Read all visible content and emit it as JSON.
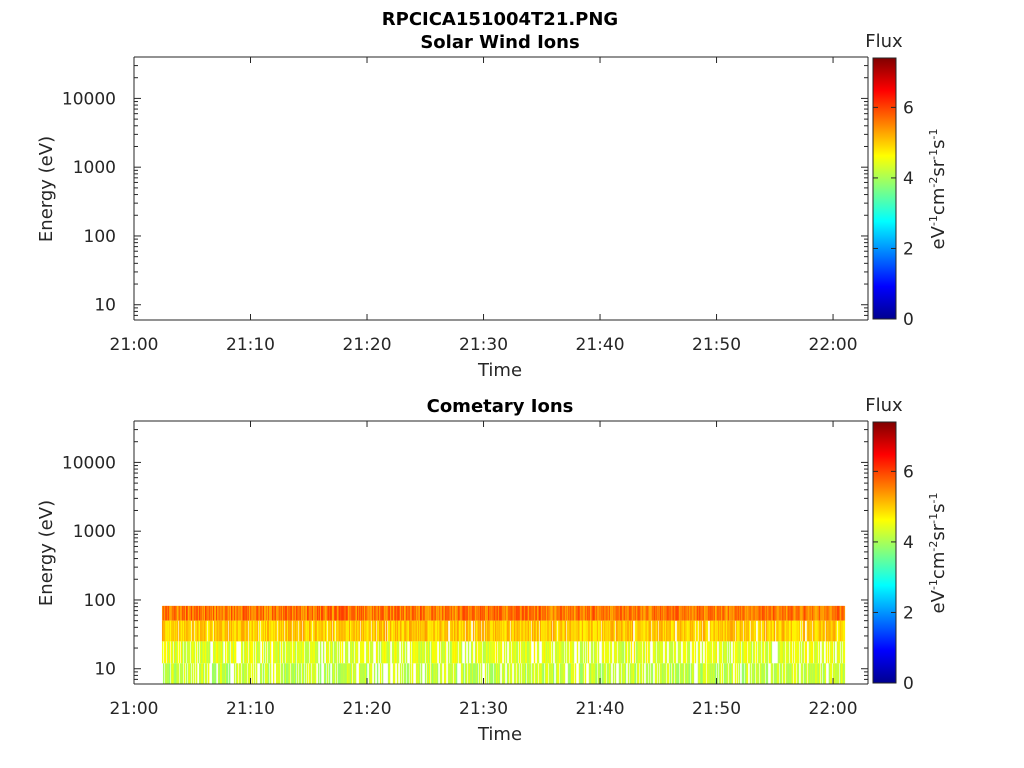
{
  "figure_title": "RPCICA151004T21.PNG",
  "colorbar": {
    "title": "Flux",
    "ticks": [
      "0",
      "2",
      "4",
      "6"
    ],
    "range": [
      0,
      7.4
    ],
    "colormap": "jet",
    "units_base": [
      "eV",
      "cm",
      "sr",
      "s"
    ],
    "units_exp": [
      "-1",
      "-2",
      "-1",
      "-1"
    ]
  },
  "chart_data": [
    {
      "type": "heatmap",
      "title": "Solar Wind Ions",
      "xlabel": "Time",
      "ylabel": "Energy (eV)",
      "xlim": [
        "21:00",
        "22:03"
      ],
      "ylim": [
        6,
        40000
      ],
      "yscale": "log",
      "xticks": [
        "21:00",
        "21:10",
        "21:20",
        "21:30",
        "21:40",
        "21:50",
        "22:00"
      ],
      "yticks": [
        "10",
        "100",
        "1000",
        "10000"
      ],
      "grid": false,
      "data": []
    },
    {
      "type": "heatmap",
      "title": "Cometary Ions",
      "xlabel": "Time",
      "ylabel": "Energy (eV)",
      "xlim": [
        "21:00",
        "22:03"
      ],
      "ylim": [
        6,
        40000
      ],
      "yscale": "log",
      "xticks": [
        "21:00",
        "21:10",
        "21:20",
        "21:30",
        "21:40",
        "21:50",
        "22:00"
      ],
      "yticks": [
        "10",
        "100",
        "1000",
        "10000"
      ],
      "grid": false,
      "data_time_range": [
        "21:02.4",
        "22:01"
      ],
      "data_energy_range": [
        6,
        82
      ],
      "flux_by_energy": [
        {
          "energy_range": [
            50,
            82
          ],
          "flux": 5.6
        },
        {
          "energy_range": [
            25,
            50
          ],
          "flux": 5.0
        },
        {
          "energy_range": [
            12,
            25
          ],
          "flux": 4.4
        },
        {
          "energy_range": [
            6,
            12
          ],
          "flux": 4.2
        }
      ]
    }
  ]
}
